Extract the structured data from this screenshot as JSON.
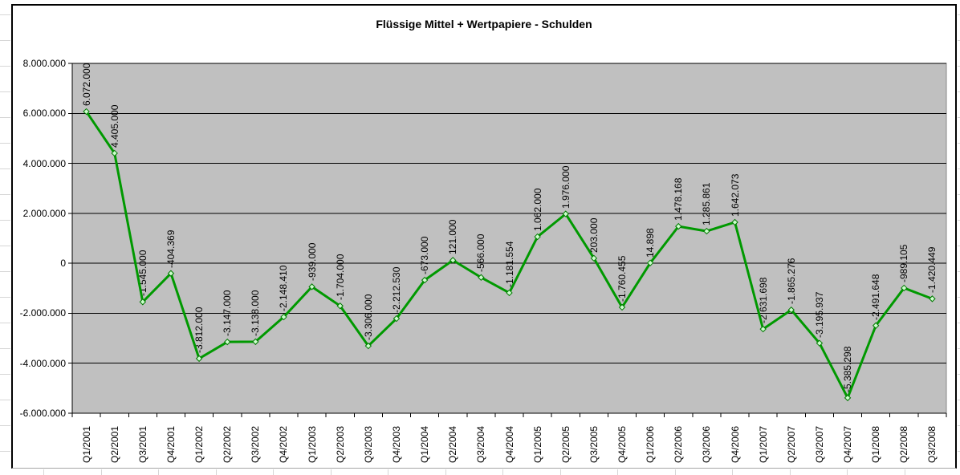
{
  "chart_data": {
    "type": "line",
    "title": "Flüssige Mittel + Wertpapiere - Schulden",
    "xlabel": "",
    "ylabel": "",
    "ylim": [
      -6000000,
      8000000
    ],
    "grid": true,
    "legend": "none",
    "plot_bg": "#c0c0c0",
    "line_color": "#009900",
    "marker_fill": "#ccffcc",
    "marker_stroke": "#007700",
    "categories": [
      "Q1/2001",
      "Q2/2001",
      "Q3/2001",
      "Q4/2001",
      "Q1/2002",
      "Q2/2002",
      "Q3/2002",
      "Q4/2002",
      "Q1/2003",
      "Q2/2003",
      "Q3/2003",
      "Q4/2003",
      "Q1/2004",
      "Q2/2004",
      "Q3/2004",
      "Q4/2004",
      "Q1/2005",
      "Q2/2005",
      "Q3/2005",
      "Q4/2005",
      "Q1/2006",
      "Q2/2006",
      "Q3/2006",
      "Q4/2006",
      "Q1/2007",
      "Q2/2007",
      "Q3/2007",
      "Q4/2007",
      "Q1/2008",
      "Q2/2008",
      "Q3/2008"
    ],
    "values": [
      6072000,
      4405000,
      -1545000,
      -404369,
      -3812000,
      -3147000,
      -3138000,
      -2148410,
      -939000,
      -1704000,
      -3306000,
      -2212530,
      -673000,
      121000,
      -566000,
      -1181554,
      1062000,
      1976000,
      203000,
      -1760455,
      14898,
      1478168,
      1285861,
      1642073,
      -2631698,
      -1865276,
      -3195937,
      -5385298,
      -2491648,
      -989105,
      -1420449
    ],
    "point_labels": [
      "6.072.000",
      "4.405.000",
      "-1.545.000",
      "-404.369",
      "-3.812.000",
      "-3.147.000",
      "-3.138.000",
      "-2.148.410",
      "-939.000",
      "-1.704.000",
      "-3.306.000",
      "-2.212.530",
      "-673.000",
      "121.000",
      "-566.000",
      "-1.181.554",
      "1.062.000",
      "1.976.000",
      "203.000",
      "-1.760.455",
      "14.898",
      "1.478.168",
      "1.285.861",
      "1.642.073",
      "-2.631.698",
      "-1.865.276",
      "-3.195.937",
      "-5.385.298",
      "-2.491.648",
      "-989.105",
      "-1.420.449"
    ],
    "yticks": [
      {
        "value": 8000000,
        "label": "8.000.000"
      },
      {
        "value": 6000000,
        "label": "6.000.000"
      },
      {
        "value": 4000000,
        "label": "4.000.000"
      },
      {
        "value": 2000000,
        "label": "2.000.000"
      },
      {
        "value": 0,
        "label": "0"
      },
      {
        "value": -2000000,
        "label": "-2.000.000"
      },
      {
        "value": -4000000,
        "label": "-4.000.000"
      },
      {
        "value": -6000000,
        "label": "-6.000.000"
      }
    ]
  }
}
